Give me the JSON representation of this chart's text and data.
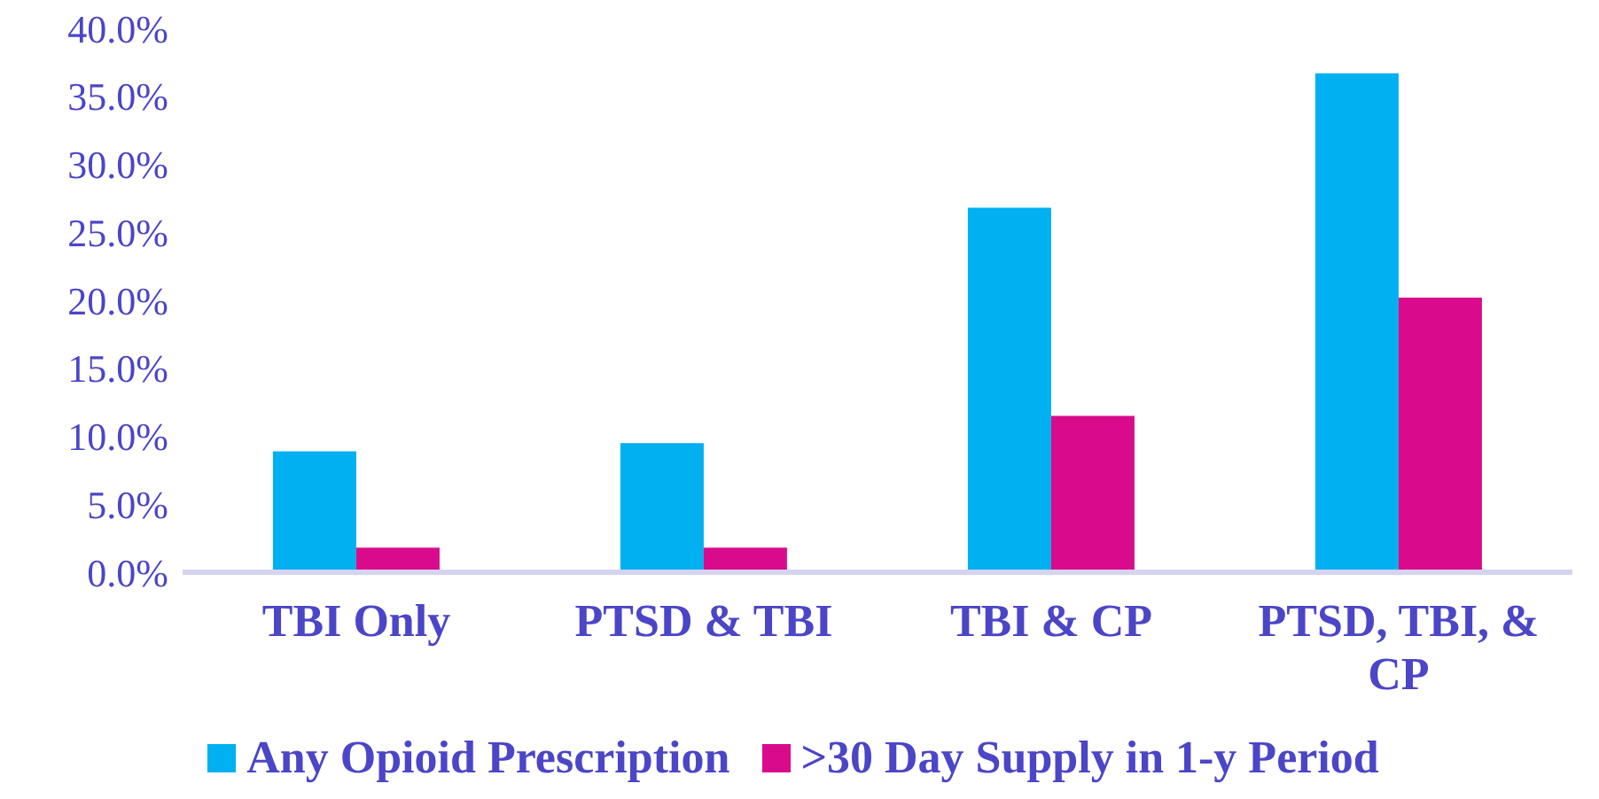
{
  "chart_data": {
    "type": "bar",
    "categories": [
      "TBI Only",
      "PTSD & TBI",
      "TBI & CP",
      "PTSD, TBI, & CP"
    ],
    "series": [
      {
        "name": "Any Opioid Prescription",
        "color": "#00b0f0",
        "values": [
          8.9,
          9.5,
          26.8,
          36.7
        ]
      },
      {
        "name": ">30 Day Supply in 1-y Period",
        "color": "#d90b8c",
        "values": [
          1.8,
          1.8,
          11.5,
          20.2
        ]
      }
    ],
    "ylim": [
      0,
      40
    ],
    "yticks": [
      {
        "value": 0,
        "label": "0.0%"
      },
      {
        "value": 5,
        "label": "5.0%"
      },
      {
        "value": 10,
        "label": "10.0%"
      },
      {
        "value": 15,
        "label": "15.0%"
      },
      {
        "value": 20,
        "label": "20.0%"
      },
      {
        "value": 25,
        "label": "25.0%"
      },
      {
        "value": 30,
        "label": "30.0%"
      },
      {
        "value": 35,
        "label": "35.0%"
      },
      {
        "value": 40,
        "label": "40.0%"
      }
    ],
    "grid": false,
    "legend": "bottom"
  }
}
